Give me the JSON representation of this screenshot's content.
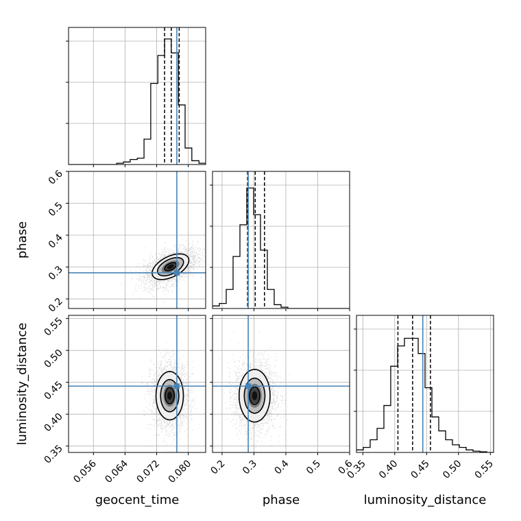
{
  "chart_data": {
    "type": "corner",
    "parameters": [
      "geocent_time",
      "phase",
      "luminosity_distance"
    ],
    "axis_labels": {
      "geocent_time": "geocent_time",
      "phase": "phase",
      "luminosity_distance": "luminosity_distance"
    },
    "ranges": {
      "geocent_time": [
        0.0497,
        0.0844
      ],
      "phase": [
        0.17,
        0.6
      ],
      "luminosity_distance": [
        0.34,
        0.555
      ]
    },
    "ticks": {
      "geocent_time": [
        "0.056",
        "0.064",
        "0.072",
        "0.080"
      ],
      "phase": [
        "0.2",
        "0.3",
        "0.4",
        "0.5",
        "0.6"
      ],
      "luminosity_distance": [
        "0.35",
        "0.40",
        "0.45",
        "0.50",
        "0.55"
      ]
    },
    "truths": {
      "geocent_time": 0.0771,
      "phase": 0.282,
      "luminosity_distance": 0.444
    },
    "quantiles": {
      "geocent_time": [
        0.074,
        0.0757,
        0.0777
      ],
      "phase": [
        0.28,
        0.304,
        0.333
      ],
      "luminosity_distance": [
        0.405,
        0.428,
        0.456
      ]
    },
    "histograms": {
      "geocent_time": {
        "edges": [
          0.0497,
          0.0514,
          0.0532,
          0.0549,
          0.0566,
          0.0584,
          0.0601,
          0.0619,
          0.0636,
          0.0653,
          0.0671,
          0.0688,
          0.0705,
          0.0723,
          0.074,
          0.0757,
          0.0775,
          0.0792,
          0.0809,
          0.0827,
          0.0844
        ],
        "counts": [
          0,
          0,
          0,
          0,
          0,
          0,
          0,
          0.01,
          0.02,
          0.04,
          0.05,
          0.2,
          0.64,
          0.86,
          0.99,
          0.88,
          0.47,
          0.13,
          0.03,
          0.01
        ]
      },
      "phase": {
        "edges": [
          0.17,
          0.1915,
          0.213,
          0.2345,
          0.256,
          0.2775,
          0.299,
          0.3205,
          0.342,
          0.3635,
          0.385,
          0.4065,
          0.428,
          0.4495,
          0.471,
          0.4925,
          0.514,
          0.5355,
          0.557,
          0.5785,
          0.6
        ],
        "counts": [
          0.02,
          0.04,
          0.15,
          0.41,
          0.66,
          0.95,
          0.74,
          0.46,
          0.15,
          0.03,
          0.01,
          0,
          0,
          0,
          0,
          0,
          0,
          0,
          0,
          0
        ]
      },
      "luminosity_distance": {
        "edges": [
          0.34,
          0.3507,
          0.3615,
          0.3723,
          0.383,
          0.3937,
          0.4045,
          0.4152,
          0.426,
          0.4368,
          0.4475,
          0.4583,
          0.469,
          0.4798,
          0.4905,
          0.5013,
          0.512,
          0.5228,
          0.5335,
          0.5443,
          0.555
        ],
        "counts": [
          0.02,
          0.04,
          0.1,
          0.19,
          0.37,
          0.68,
          0.84,
          0.9,
          0.9,
          0.78,
          0.51,
          0.28,
          0.17,
          0.1,
          0.06,
          0.04,
          0.02,
          0.01,
          0.005,
          0
        ]
      }
    },
    "contours_2d": [
      {
        "x": "geocent_time",
        "y": "phase",
        "center": [
          0.0755,
          0.301
        ],
        "sigma": [
          0.003,
          0.026
        ],
        "levels": [
          0.5,
          1.1,
          1.55
        ],
        "correlation": 0.5
      },
      {
        "x": "geocent_time",
        "y": "luminosity_distance",
        "center": [
          0.0753,
          0.429
        ],
        "sigma": [
          0.0021,
          0.023
        ],
        "levels": [
          0.55,
          1.1,
          1.65
        ],
        "correlation": 0.0
      },
      {
        "x": "phase",
        "y": "luminosity_distance",
        "center": [
          0.302,
          0.429
        ],
        "sigma": [
          0.0295,
          0.025
        ],
        "levels": [
          0.55,
          1.1,
          1.65
        ],
        "correlation": 0.0
      }
    ],
    "colors": {
      "truth": "#4682b4",
      "grid": "#b0b0b0",
      "line": "#000000",
      "scatter": "#9a9a9a"
    },
    "grid": true
  }
}
